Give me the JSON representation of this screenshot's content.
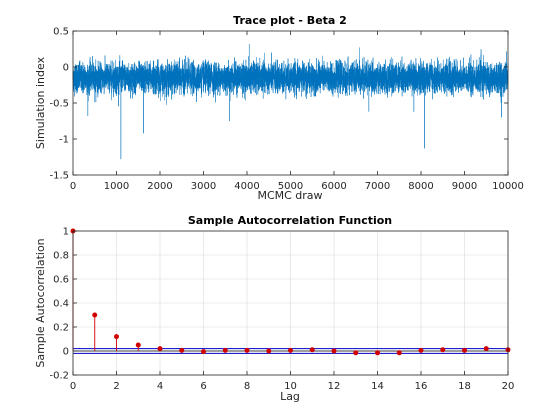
{
  "colors": {
    "trace": "#0072bd",
    "stem": "#d00000",
    "bound": "#0000cc",
    "zero": "#000000",
    "grid": "#dcdcdc",
    "axis": "#262626"
  },
  "chart_data": [
    {
      "type": "line",
      "title": "Trace plot - Beta 2",
      "xlabel": "MCMC draw",
      "ylabel": "Simulation index",
      "xlim": [
        0,
        10000
      ],
      "ylim": [
        -1.5,
        0.5
      ],
      "xticks": [
        0,
        1000,
        2000,
        3000,
        4000,
        5000,
        6000,
        7000,
        8000,
        9000,
        10000
      ],
      "xtick_labels": [
        "0",
        "1000",
        "2000",
        "3000",
        "4000",
        "5000",
        "6000",
        "7000",
        "8000",
        "9000",
        "10000"
      ],
      "yticks": [
        -1.5,
        -1,
        -0.5,
        0,
        0.5
      ],
      "ytick_labels": [
        "-1.5",
        "-1",
        "-0.5",
        "0",
        "0.5"
      ],
      "grid": false,
      "series": [
        {
          "n_draws": 10000,
          "mean": -0.15,
          "sd": 0.1,
          "notable_points": [
            {
              "x": 1100,
              "y": -1.28
            },
            {
              "x": 1620,
              "y": -0.92
            },
            {
              "x": 8080,
              "y": -1.13
            },
            {
              "x": 3600,
              "y": -0.75
            },
            {
              "x": 4050,
              "y": 0.32
            },
            {
              "x": 9850,
              "y": -0.7
            },
            {
              "x": 6800,
              "y": -0.62
            },
            {
              "x": 340,
              "y": -0.68
            }
          ]
        }
      ]
    },
    {
      "type": "stem",
      "title": "Sample Autocorrelation Function",
      "xlabel": "Lag",
      "ylabel": "Sample Autocorrelation",
      "xlim": [
        0,
        20
      ],
      "ylim": [
        -0.2,
        1
      ],
      "xticks": [
        0,
        2,
        4,
        6,
        8,
        10,
        12,
        14,
        16,
        18,
        20
      ],
      "xtick_labels": [
        "0",
        "2",
        "4",
        "6",
        "8",
        "10",
        "12",
        "14",
        "16",
        "18",
        "20"
      ],
      "yticks": [
        -0.2,
        0,
        0.2,
        0.4,
        0.6,
        0.8,
        1
      ],
      "ytick_labels": [
        "-0.2",
        "0",
        "0.2",
        "0.4",
        "0.6",
        "0.8",
        "1"
      ],
      "grid": true,
      "lags": [
        0,
        1,
        2,
        3,
        4,
        5,
        6,
        7,
        8,
        9,
        10,
        11,
        12,
        13,
        14,
        15,
        16,
        17,
        18,
        19,
        20
      ],
      "values": [
        1.0,
        0.3,
        0.12,
        0.05,
        0.02,
        0.005,
        -0.005,
        0.005,
        0.005,
        0.0,
        0.005,
        0.01,
        0.0,
        -0.015,
        -0.015,
        -0.015,
        0.005,
        0.01,
        0.005,
        0.02,
        0.01
      ],
      "confidence_bounds": [
        0.02,
        -0.02
      ]
    }
  ]
}
